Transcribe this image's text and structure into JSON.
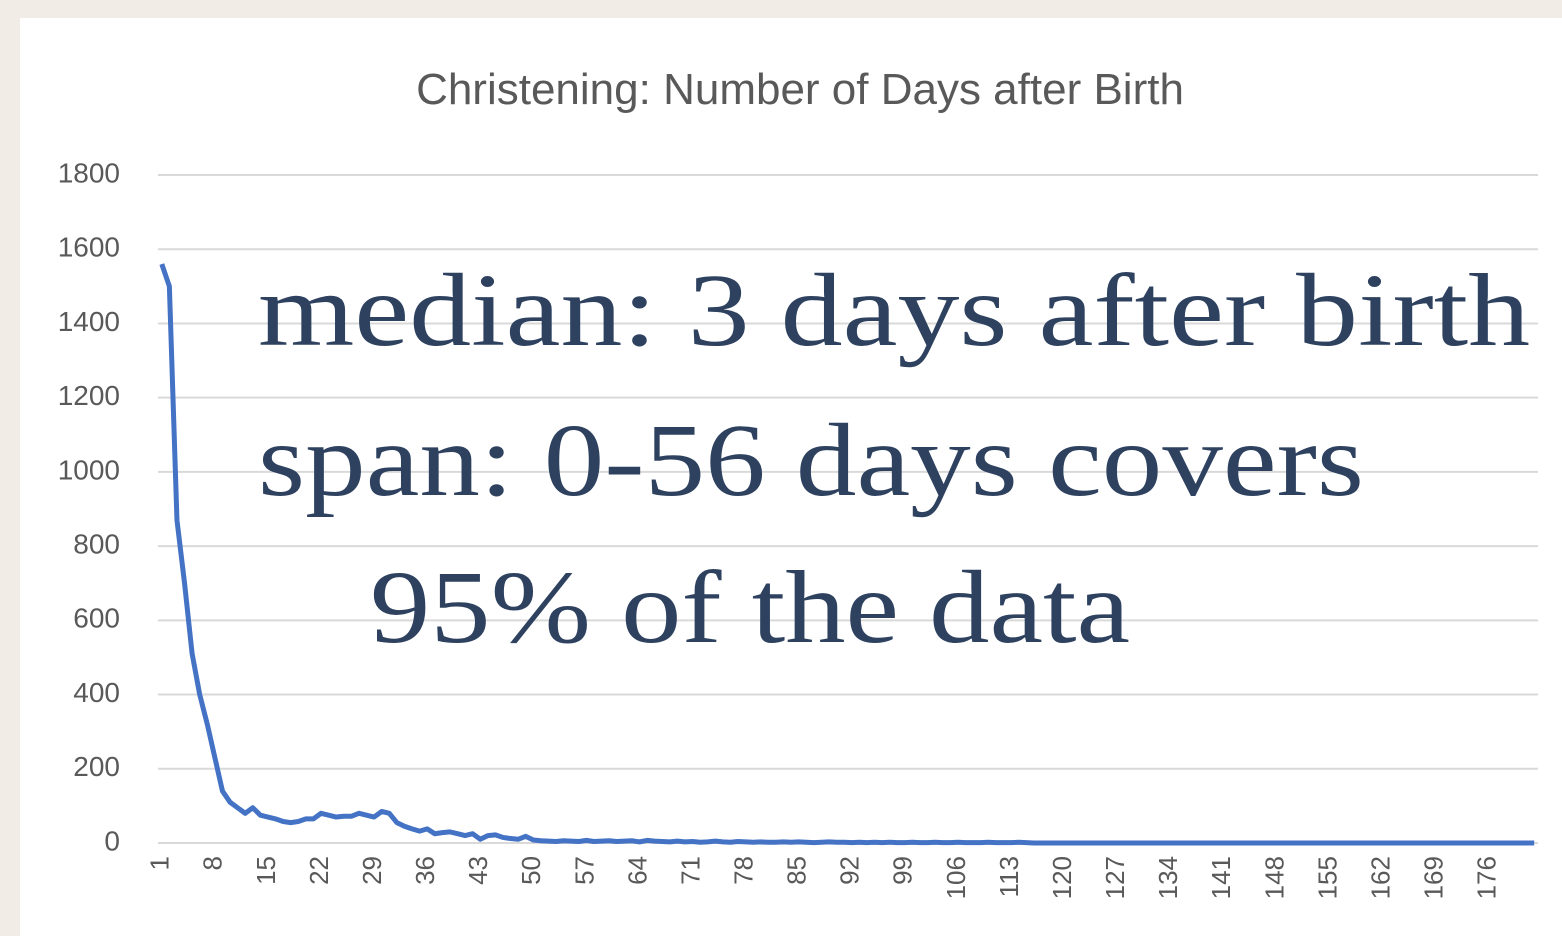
{
  "chart_data": {
    "type": "line",
    "title": "Christening: Number of Days after Birth",
    "annotations": [
      "median: 3 days after birth",
      "span: 0-56 days covers",
      "95% of the data"
    ],
    "categories": [
      "1",
      null,
      null,
      null,
      null,
      null,
      null,
      "8",
      null,
      null,
      null,
      null,
      null,
      null,
      "15",
      null,
      null,
      null,
      null,
      null,
      null,
      "22",
      null,
      null,
      null,
      null,
      null,
      null,
      "29",
      null,
      null,
      null,
      null,
      null,
      null,
      "36",
      null,
      null,
      null,
      null,
      null,
      null,
      "43",
      null,
      null,
      null,
      null,
      null,
      null,
      "50",
      null,
      null,
      null,
      null,
      null,
      null,
      "57",
      null,
      null,
      null,
      null,
      null,
      null,
      "64",
      null,
      null,
      null,
      null,
      null,
      null,
      "71",
      null,
      null,
      null,
      null,
      null,
      null,
      "78",
      null,
      null,
      null,
      null,
      null,
      null,
      "85",
      null,
      null,
      null,
      null,
      null,
      null,
      "92",
      null,
      null,
      null,
      null,
      null,
      null,
      "99",
      null,
      null,
      null,
      null,
      null,
      null,
      "106",
      null,
      null,
      null,
      null,
      null,
      null,
      "113",
      null,
      null,
      null,
      null,
      null,
      null,
      "120",
      null,
      null,
      null,
      null,
      null,
      null,
      "127",
      null,
      null,
      null,
      null,
      null,
      null,
      "134",
      null,
      null,
      null,
      null,
      null,
      null,
      "141",
      null,
      null,
      null,
      null,
      null,
      null,
      "148",
      null,
      null,
      null,
      null,
      null,
      null,
      "155",
      null,
      null,
      null,
      null,
      null,
      null,
      "162",
      null,
      null,
      null,
      null,
      null,
      null,
      "169",
      null,
      null,
      null,
      null,
      null,
      null,
      "176",
      null,
      null,
      null,
      null,
      null,
      null
    ],
    "values": [
      1560,
      1500,
      870,
      700,
      510,
      400,
      320,
      230,
      140,
      110,
      95,
      80,
      95,
      75,
      70,
      65,
      58,
      55,
      58,
      65,
      65,
      80,
      75,
      70,
      72,
      72,
      80,
      75,
      70,
      85,
      80,
      55,
      45,
      38,
      32,
      38,
      25,
      28,
      30,
      25,
      20,
      25,
      10,
      20,
      22,
      15,
      12,
      10,
      18,
      8,
      6,
      5,
      4,
      6,
      5,
      4,
      7,
      4,
      5,
      6,
      4,
      5,
      6,
      3,
      7,
      5,
      4,
      3,
      5,
      3,
      4,
      2,
      3,
      5,
      3,
      2,
      4,
      3,
      2,
      3,
      2,
      2,
      3,
      2,
      3,
      2,
      1,
      2,
      3,
      2,
      2,
      1,
      2,
      1,
      2,
      1,
      2,
      1,
      1,
      2,
      1,
      1,
      2,
      1,
      1,
      2,
      1,
      1,
      1,
      2,
      1,
      1,
      1,
      2,
      1,
      0,
      0,
      0,
      0,
      0,
      0,
      0,
      0,
      0,
      0,
      0,
      0,
      0,
      0,
      0,
      0,
      0,
      0,
      0,
      0,
      0,
      0,
      0,
      0,
      0,
      0,
      0,
      0,
      0,
      0,
      0,
      0,
      0,
      0,
      0,
      0,
      0,
      0,
      0,
      0,
      0,
      0,
      0,
      0,
      0,
      0,
      0,
      0,
      0,
      0,
      0,
      0,
      0,
      0,
      0,
      0,
      0,
      0,
      0,
      0,
      0,
      0,
      0,
      0,
      0,
      0,
      0
    ],
    "color": "#4472c4",
    "ylim": [
      0,
      1800
    ],
    "yticks": [
      0,
      200,
      400,
      600,
      800,
      1000,
      1200,
      1400,
      1600,
      1800
    ],
    "grid": true
  }
}
